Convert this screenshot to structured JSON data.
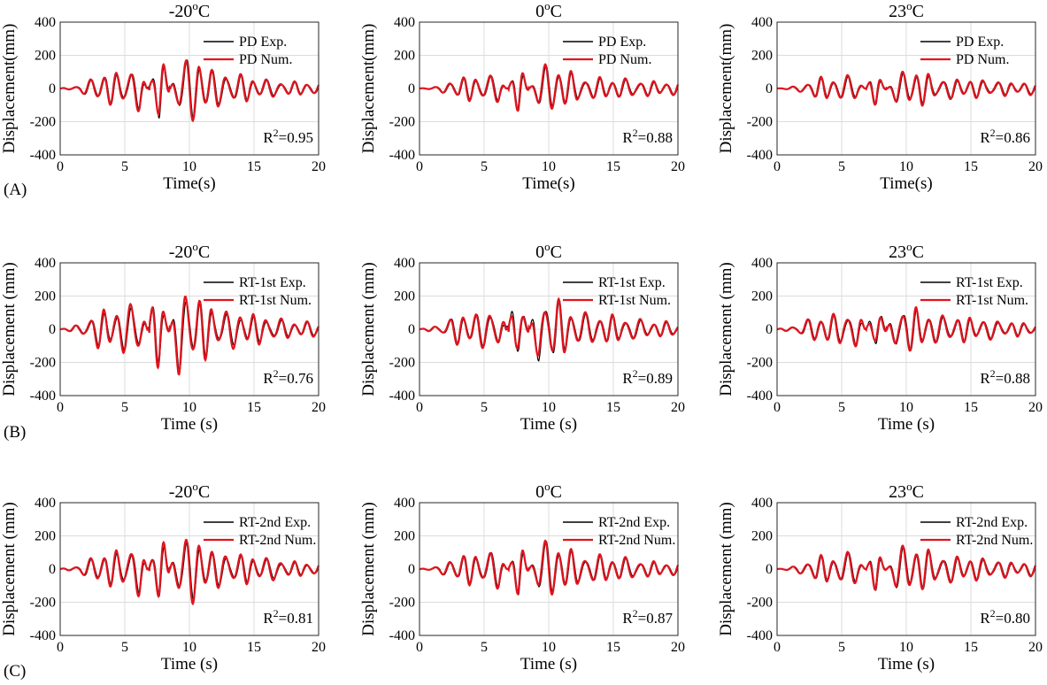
{
  "figure": {
    "row_labels": [
      "(A)",
      "(B)",
      "(C)"
    ]
  },
  "colors": {
    "experimental": "#000000",
    "numerical": "#e0141e",
    "grid": "#dcdcdc",
    "axis": "#262626"
  },
  "chart_data": [
    {
      "type": "line",
      "row": 0,
      "col": 0,
      "title": "-20",
      "title_sup": "o",
      "title_suffix": "C",
      "xlabel": "Time(s)",
      "ylabel": "Displacement(mm)",
      "xlim": [
        0,
        20
      ],
      "ylim": [
        -400,
        400
      ],
      "xticks": [
        0,
        5,
        10,
        15,
        20
      ],
      "yticks": [
        -400,
        -200,
        0,
        200,
        400
      ],
      "grid": true,
      "legend_position": "top-right",
      "r2_prefix": "R",
      "r2_sup": "2",
      "r2_value": "=0.95",
      "series": [
        {
          "name": "PD Exp.",
          "role": "experimental",
          "amp": [
            0,
            20,
            95,
            100,
            130,
            -245,
            200,
            190,
            100,
            90,
            60,
            45,
            40,
            40
          ]
        },
        {
          "name": "PD Num.",
          "role": "numerical",
          "amp": [
            0,
            20,
            100,
            105,
            140,
            -240,
            205,
            195,
            105,
            95,
            65,
            50,
            42,
            42
          ]
        }
      ]
    },
    {
      "type": "line",
      "row": 0,
      "col": 1,
      "title": "0",
      "title_sup": "o",
      "title_suffix": "C",
      "xlabel": "Time(s)",
      "ylabel": "Displacement(mm)",
      "xlim": [
        0,
        20
      ],
      "ylim": [
        -400,
        400
      ],
      "xticks": [
        0,
        5,
        10,
        15,
        20
      ],
      "yticks": [
        -400,
        -200,
        0,
        200,
        400
      ],
      "grid": true,
      "legend_position": "top-right",
      "r2_prefix": "R",
      "r2_sup": "2",
      "r2_value": "=0.88",
      "series": [
        {
          "name": "PD Exp.",
          "role": "experimental",
          "amp": [
            0,
            15,
            70,
            75,
            85,
            -150,
            130,
            150,
            70,
            65,
            60,
            50,
            40,
            40
          ]
        },
        {
          "name": "PD Num.",
          "role": "numerical",
          "amp": [
            0,
            15,
            75,
            80,
            90,
            -160,
            140,
            160,
            75,
            70,
            65,
            55,
            45,
            45
          ]
        }
      ]
    },
    {
      "type": "line",
      "row": 0,
      "col": 2,
      "title": "23",
      "title_sup": "o",
      "title_suffix": "C",
      "xlabel": "Time(s)",
      "ylabel": "Displacement(mm)",
      "xlim": [
        0,
        20
      ],
      "ylim": [
        -400,
        400
      ],
      "xticks": [
        0,
        5,
        10,
        15,
        20
      ],
      "yticks": [
        -400,
        -200,
        0,
        200,
        400
      ],
      "grid": true,
      "legend_position": "top-right",
      "r2_prefix": "R",
      "r2_sup": "2",
      "r2_value": "=0.86",
      "series": [
        {
          "name": "PD Exp.",
          "role": "experimental",
          "amp": [
            0,
            15,
            65,
            70,
            80,
            -110,
            90,
            120,
            60,
            60,
            55,
            45,
            35,
            35
          ]
        },
        {
          "name": "PD Num.",
          "role": "numerical",
          "amp": [
            0,
            15,
            70,
            75,
            85,
            -115,
            95,
            135,
            65,
            65,
            60,
            50,
            40,
            40
          ]
        }
      ]
    },
    {
      "type": "line",
      "row": 1,
      "col": 0,
      "title": "-20",
      "title_sup": "o",
      "title_suffix": "C",
      "xlabel": "Time (s)",
      "ylabel": "Displacement (mm)",
      "xlim": [
        0,
        20
      ],
      "ylim": [
        -400,
        400
      ],
      "xticks": [
        0,
        5,
        10,
        15,
        20
      ],
      "yticks": [
        -400,
        -200,
        0,
        200,
        400
      ],
      "grid": true,
      "legend_position": "top-right",
      "r2_prefix": "R",
      "r2_sup": "2",
      "r2_value": "=0.76",
      "series": [
        {
          "name": "RT-1st Exp.",
          "role": "experimental",
          "amp": [
            0,
            30,
            110,
            120,
            180,
            -300,
            270,
            200,
            110,
            100,
            80,
            60,
            45,
            45
          ]
        },
        {
          "name": "RT-1st Num.",
          "role": "numerical",
          "amp": [
            0,
            30,
            130,
            140,
            200,
            -330,
            300,
            210,
            130,
            120,
            95,
            70,
            50,
            50
          ]
        }
      ]
    },
    {
      "type": "line",
      "row": 1,
      "col": 1,
      "title": "0",
      "title_sup": "o",
      "title_suffix": "C",
      "xlabel": "Time (s)",
      "ylabel": "Displacement (mm)",
      "xlim": [
        0,
        20
      ],
      "ylim": [
        -400,
        400
      ],
      "xticks": [
        0,
        5,
        10,
        15,
        20
      ],
      "yticks": [
        -400,
        -200,
        0,
        200,
        400
      ],
      "grid": true,
      "legend_position": "top-right",
      "r2_prefix": "R",
      "r2_sup": "2",
      "r2_value": "=0.89",
      "series": [
        {
          "name": "RT-1st Exp.",
          "role": "experimental",
          "amp": [
            0,
            25,
            100,
            105,
            130,
            -260,
            230,
            180,
            100,
            95,
            80,
            60,
            45,
            45
          ]
        },
        {
          "name": "RT-1st Num.",
          "role": "numerical",
          "amp": [
            0,
            25,
            105,
            110,
            140,
            -230,
            200,
            185,
            105,
            100,
            85,
            65,
            50,
            50
          ]
        }
      ]
    },
    {
      "type": "line",
      "row": 1,
      "col": 2,
      "title": "23",
      "title_sup": "o",
      "title_suffix": "C",
      "xlabel": "Time (s)",
      "ylabel": "Displacement (mm)",
      "xlim": [
        0,
        20
      ],
      "ylim": [
        -400,
        400
      ],
      "xticks": [
        0,
        5,
        10,
        15,
        20
      ],
      "yticks": [
        -400,
        -200,
        0,
        200,
        400
      ],
      "grid": true,
      "legend_position": "top-right",
      "r2_prefix": "R",
      "r2_sup": "2",
      "r2_value": "=0.88",
      "series": [
        {
          "name": "RT-1st Exp.",
          "role": "experimental",
          "amp": [
            0,
            25,
            85,
            90,
            120,
            -180,
            150,
            130,
            85,
            80,
            70,
            55,
            40,
            40
          ]
        },
        {
          "name": "RT-1st Num.",
          "role": "numerical",
          "amp": [
            0,
            25,
            90,
            95,
            130,
            -160,
            145,
            140,
            90,
            85,
            75,
            60,
            45,
            45
          ]
        }
      ]
    },
    {
      "type": "line",
      "row": 2,
      "col": 0,
      "title": "-20",
      "title_sup": "o",
      "title_suffix": "C",
      "xlabel": "Time (s)",
      "ylabel": "Displacement (mm)",
      "xlim": [
        0,
        20
      ],
      "ylim": [
        -400,
        400
      ],
      "xticks": [
        0,
        5,
        10,
        15,
        20
      ],
      "yticks": [
        -400,
        -200,
        0,
        200,
        400
      ],
      "grid": true,
      "legend_position": "top-right",
      "r2_prefix": "R",
      "r2_sup": "2",
      "r2_value": "=0.81",
      "series": [
        {
          "name": "RT-2nd Exp.",
          "role": "experimental",
          "amp": [
            0,
            25,
            100,
            105,
            150,
            -250,
            220,
            170,
            100,
            90,
            75,
            55,
            40,
            40
          ]
        },
        {
          "name": "RT-2nd Num.",
          "role": "numerical",
          "amp": [
            0,
            25,
            110,
            120,
            170,
            -280,
            250,
            190,
            110,
            100,
            85,
            65,
            45,
            45
          ]
        }
      ]
    },
    {
      "type": "line",
      "row": 2,
      "col": 1,
      "title": "0",
      "title_sup": "o",
      "title_suffix": "C",
      "xlabel": "Time (s)",
      "ylabel": "Displacement (mm)",
      "xlim": [
        0,
        20
      ],
      "ylim": [
        -400,
        400
      ],
      "xticks": [
        0,
        5,
        10,
        15,
        20
      ],
      "yticks": [
        -400,
        -200,
        0,
        200,
        400
      ],
      "grid": true,
      "legend_position": "top-right",
      "r2_prefix": "R",
      "r2_sup": "2",
      "r2_value": "=0.87",
      "series": [
        {
          "name": "RT-2nd Exp.",
          "role": "experimental",
          "amp": [
            0,
            20,
            90,
            95,
            120,
            -180,
            170,
            170,
            90,
            85,
            75,
            55,
            40,
            40
          ]
        },
        {
          "name": "RT-2nd Num.",
          "role": "numerical",
          "amp": [
            0,
            20,
            95,
            100,
            125,
            -190,
            175,
            180,
            95,
            90,
            80,
            60,
            45,
            45
          ]
        }
      ]
    },
    {
      "type": "line",
      "row": 2,
      "col": 2,
      "title": "23",
      "title_sup": "o",
      "title_suffix": "C",
      "xlabel": "Time (s)",
      "ylabel": "Displacement (mm)",
      "xlim": [
        0,
        20
      ],
      "ylim": [
        -400,
        400
      ],
      "xticks": [
        0,
        5,
        10,
        15,
        20
      ],
      "yticks": [
        -400,
        -200,
        0,
        200,
        400
      ],
      "grid": true,
      "legend_position": "top-right",
      "r2_prefix": "R",
      "r2_sup": "2",
      "r2_value": "=0.80",
      "series": [
        {
          "name": "RT-2nd Exp.",
          "role": "experimental",
          "amp": [
            0,
            20,
            80,
            85,
            110,
            -140,
            130,
            160,
            85,
            80,
            70,
            55,
            40,
            40
          ]
        },
        {
          "name": "RT-2nd Num.",
          "role": "numerical",
          "amp": [
            0,
            20,
            85,
            90,
            115,
            -145,
            135,
            165,
            90,
            85,
            75,
            60,
            45,
            45
          ]
        }
      ]
    }
  ]
}
